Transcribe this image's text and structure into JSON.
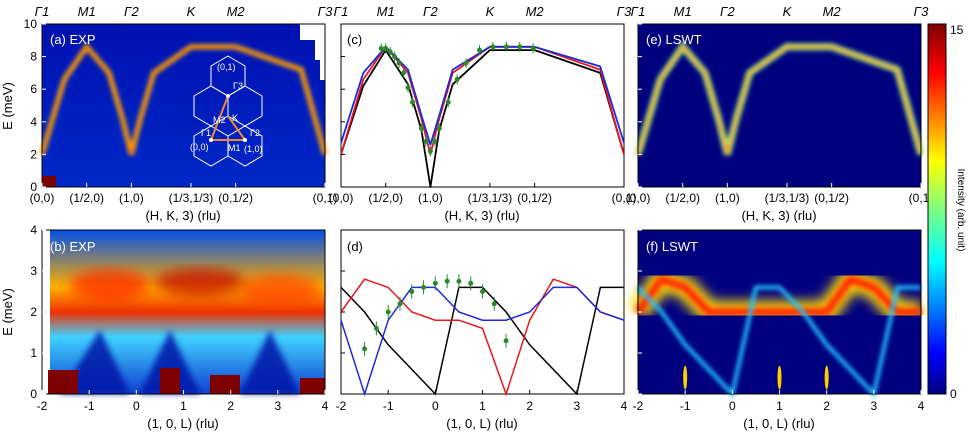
{
  "colors": {
    "red": "#e8171d",
    "blue": "#1c2bd6",
    "black": "#000000",
    "green": "#2a8a2a",
    "dark_bg": "#00007f",
    "cmap": [
      "#00007f",
      "#0000ff",
      "#007fff",
      "#00ffff",
      "#7fff7f",
      "#ffff00",
      "#ff7f00",
      "#ff0000",
      "#7f0000"
    ]
  },
  "top_row": {
    "sym_labels": [
      "Γ1",
      "M1",
      "Γ2",
      "K",
      "M2",
      "Γ3"
    ],
    "sym_positions": [
      0,
      0.5,
      1.0,
      1.6667,
      2.1667,
      3.1667
    ],
    "tick_labels": [
      "(0,0)",
      "(1/2,0)",
      "(1,0)",
      "(1/3,1/3)",
      "(0,1/2)",
      "(0,1)"
    ],
    "xlabel": "(H, K, 3) (rlu)",
    "ylabel": "E (meV)",
    "ylim": [
      0,
      10
    ],
    "yticks": [
      "0",
      "2",
      "4",
      "6",
      "8",
      "10"
    ]
  },
  "bottom_row": {
    "xlabel": "(1, 0, L) (rlu)",
    "ylabel": "E (meV)",
    "xlim": [
      -2,
      4
    ],
    "ylim": [
      0,
      4
    ],
    "xticks": [
      "-2",
      "-1",
      "0",
      "1",
      "2",
      "3",
      "4"
    ],
    "yticks": [
      "0",
      "1",
      "2",
      "3",
      "4"
    ]
  },
  "panels": {
    "a": "(a) EXP",
    "b": "(b) EXP",
    "c": "(c)",
    "d": "(d)",
    "e": "(e) LSWT",
    "f": "(f) LSWT"
  },
  "inset": {
    "labels": [
      "(0,1)",
      "Γ3",
      "M2",
      "K",
      "Γ1",
      "Γ2",
      "(0,0)",
      "M1",
      "(1,0)"
    ]
  },
  "colorbar": {
    "max_label": "15",
    "min_label": "0",
    "title": "Intensity (arb. unit)"
  },
  "chart_data": [
    {
      "panel": "c",
      "type": "line",
      "title": "(c)",
      "xlabel": "(H, K, 3) (rlu)",
      "ylabel": "E (meV)",
      "ylim": [
        0,
        10
      ],
      "series": [
        {
          "name": "black",
          "x": [
            0,
            0.25,
            0.5,
            0.75,
            0.9,
            1.0,
            1.1,
            1.25,
            1.6667,
            2.1667,
            2.9,
            3.1667
          ],
          "y": [
            2.0,
            6.2,
            8.4,
            6.3,
            3.5,
            0.0,
            3.5,
            6.3,
            8.4,
            8.4,
            7.0,
            2.0
          ]
        },
        {
          "name": "red",
          "x": [
            0,
            0.25,
            0.5,
            0.75,
            0.9,
            1.0,
            1.1,
            1.25,
            1.6667,
            2.1667,
            2.9,
            3.1667
          ],
          "y": [
            2.0,
            6.6,
            8.6,
            7.0,
            4.2,
            2.0,
            4.2,
            7.0,
            8.6,
            8.6,
            7.2,
            2.0
          ]
        },
        {
          "name": "blue",
          "x": [
            0,
            0.25,
            0.5,
            0.75,
            0.9,
            1.0,
            1.1,
            1.25,
            1.6667,
            2.1667,
            2.9,
            3.1667
          ],
          "y": [
            2.7,
            7.0,
            8.6,
            7.2,
            4.4,
            2.6,
            4.4,
            7.2,
            8.6,
            8.6,
            7.4,
            2.7
          ]
        },
        {
          "name": "data",
          "x": [
            0.45,
            0.5,
            0.55,
            0.6,
            0.65,
            0.7,
            0.75,
            0.8,
            0.9,
            0.95,
            1.0,
            1.05,
            1.1,
            1.2,
            1.3,
            1.4,
            1.55,
            1.7,
            1.85,
            2.0,
            2.15
          ],
          "y": [
            8.5,
            8.5,
            8.3,
            8.0,
            7.6,
            7.0,
            6.1,
            5.2,
            3.6,
            2.8,
            2.2,
            2.8,
            3.6,
            5.2,
            6.6,
            7.6,
            8.4,
            8.6,
            8.6,
            8.6,
            8.5
          ]
        }
      ]
    },
    {
      "panel": "d",
      "type": "line",
      "title": "(d)",
      "xlabel": "(1, 0, L) (rlu)",
      "ylabel": "E (meV)",
      "xlim": [
        -2,
        4
      ],
      "ylim": [
        0,
        4
      ],
      "series": [
        {
          "name": "black",
          "x": [
            -2,
            -1.5,
            -1,
            -0.5,
            0,
            0.5,
            1,
            1.5,
            2,
            2.5,
            3,
            3.5,
            4
          ],
          "y": [
            2.6,
            2.0,
            1.2,
            0.6,
            0.0,
            2.6,
            2.6,
            2.0,
            1.2,
            0.6,
            0.0,
            2.6,
            2.6
          ]
        },
        {
          "name": "red",
          "x": [
            -2,
            -1.5,
            -1,
            -0.5,
            0,
            0.5,
            1,
            1.5,
            2,
            2.5,
            3,
            3.5,
            4
          ],
          "y": [
            2.0,
            2.8,
            2.6,
            2.0,
            1.8,
            1.8,
            1.6,
            0.0,
            1.8,
            2.8,
            2.6,
            2.0,
            1.8
          ]
        },
        {
          "name": "blue",
          "x": [
            -2,
            -1.5,
            -1,
            -0.5,
            0,
            0.5,
            1,
            1.5,
            2,
            2.5,
            3,
            3.5,
            4
          ],
          "y": [
            1.8,
            0.0,
            1.8,
            2.6,
            2.6,
            2.0,
            1.8,
            1.8,
            2.0,
            2.6,
            2.6,
            2.0,
            1.8
          ]
        },
        {
          "name": "data",
          "x": [
            -1.5,
            -1.25,
            -1.0,
            -0.75,
            -0.5,
            -0.25,
            0.0,
            0.25,
            0.5,
            0.75,
            1.0,
            1.25,
            1.5
          ],
          "y": [
            1.1,
            1.6,
            2.0,
            2.2,
            2.5,
            2.6,
            2.7,
            2.75,
            2.75,
            2.7,
            2.5,
            2.2,
            1.3
          ]
        }
      ]
    }
  ]
}
